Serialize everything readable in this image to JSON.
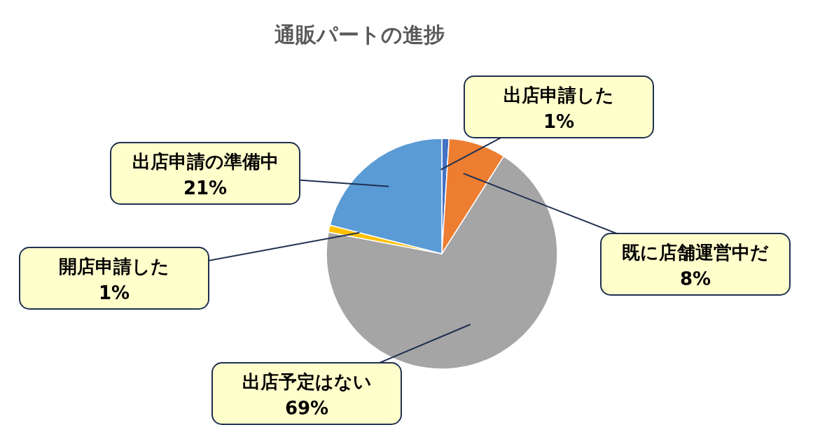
{
  "chart_data": {
    "type": "pie",
    "title": "通販パートの進捗",
    "categories": [
      "出店申請した",
      "既に店舗運営中だ",
      "出店予定はない",
      "開店申請した",
      "出店申請の準備中"
    ],
    "values": [
      1,
      8,
      69,
      1,
      21
    ],
    "colors": [
      "#4472c4",
      "#ed7d31",
      "#a5a5a5",
      "#ffc000",
      "#5b9bd5"
    ],
    "value_labels": [
      "1%",
      "8%",
      "69%",
      "1%",
      "21%"
    ]
  }
}
